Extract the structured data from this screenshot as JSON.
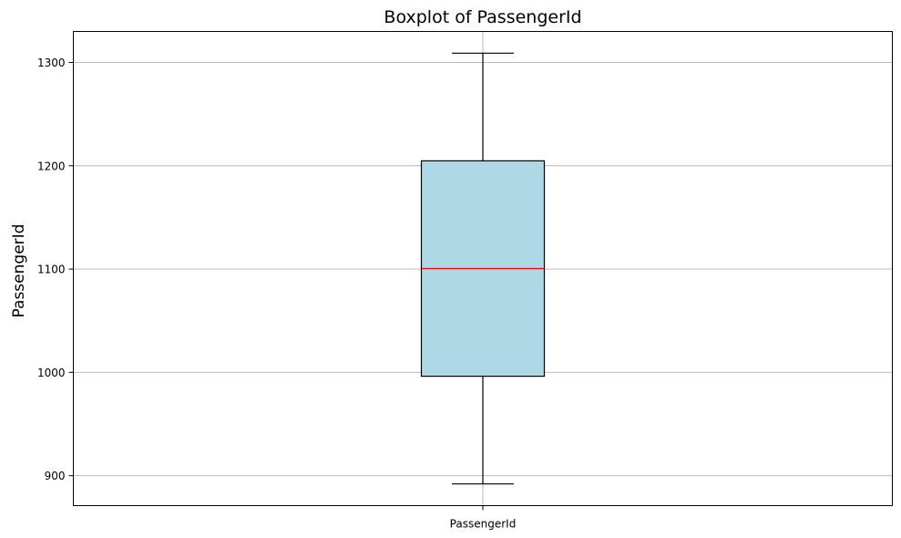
{
  "chart_data": {
    "type": "boxplot",
    "title": "Boxplot of PassengerId",
    "xlabel": "",
    "ylabel": "PassengerId",
    "categories": [
      "PassengerId"
    ],
    "boxes": [
      {
        "category": "PassengerId",
        "whisker_low": 892,
        "q1": 996.25,
        "median": 1100.5,
        "q3": 1204.75,
        "whisker_high": 1309
      }
    ],
    "ylim": [
      871,
      1330
    ],
    "yticks": [
      900,
      1000,
      1100,
      1200,
      1300
    ],
    "grid": true,
    "legend": "none",
    "colors": {
      "box_fill": "#add8e6",
      "box_edge": "#000000",
      "median": "#ff0000",
      "whisker": "#000000",
      "grid": "#b0b0b0"
    }
  }
}
